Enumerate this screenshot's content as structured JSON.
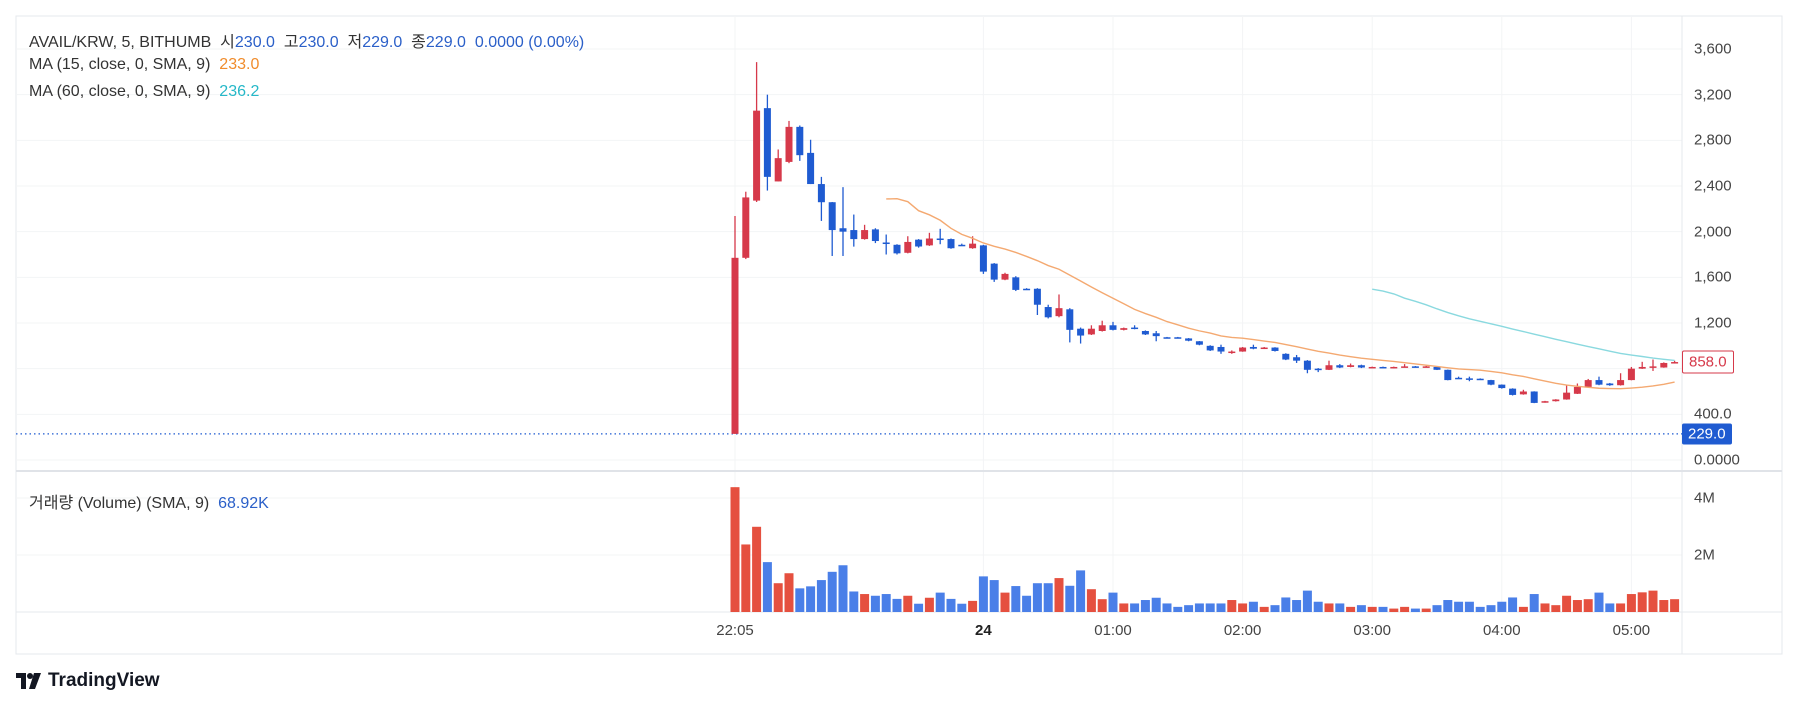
{
  "header": {
    "symbol": "AVAIL/KRW, 5, BITHUMB",
    "open_label": "시",
    "open": "230.0",
    "high_label": "고",
    "high": "230.0",
    "low_label": "저",
    "low": "229.0",
    "close_label": "종",
    "close": "229.0",
    "change": "0.0000 (0.00%)"
  },
  "indicators": [
    {
      "label": "MA (15, close, 0, SMA, 9)",
      "value": "233.0",
      "color": "#f08c2c"
    },
    {
      "label": "MA (60, close, 0, SMA, 9)",
      "value": "236.2",
      "color": "#26b8c8"
    }
  ],
  "volume_legend": {
    "label": "거래량 (Volume) (SMA, 9)",
    "value": "68.92K"
  },
  "price_tags": {
    "last": "858.0",
    "crosshair": "229.0"
  },
  "brand": "TradingView",
  "colors": {
    "up": "#d6394a",
    "down": "#1f5bd1",
    "vol_up": "#e5503f",
    "vol_down": "#4a7fe8",
    "ma15": "#f4a971",
    "ma60": "#8ad9df"
  },
  "chart_data": {
    "type": "candlestick",
    "interval": "5",
    "price_axis": {
      "ticks": [
        "3,600",
        "3,200",
        "2,800",
        "2,400",
        "2,000",
        "1,600",
        "1,200",
        "400.0",
        "0.0000"
      ],
      "tick_values": [
        3600,
        3200,
        2800,
        2400,
        2000,
        1600,
        1200,
        400,
        0
      ],
      "range": [
        0,
        3600
      ]
    },
    "volume_axis": {
      "ticks": [
        "4M",
        "2M"
      ],
      "tick_values": [
        4000000,
        2000000
      ]
    },
    "time_axis": {
      "ticks": [
        {
          "label": "22:05",
          "index": 0,
          "bold": false
        },
        {
          "label": "24",
          "index": 23,
          "bold": true
        },
        {
          "label": "01:00",
          "index": 35,
          "bold": false
        },
        {
          "label": "02:00",
          "index": 47,
          "bold": false
        },
        {
          "label": "03:00",
          "index": 59,
          "bold": false
        },
        {
          "label": "04:00",
          "index": 71,
          "bold": false
        },
        {
          "label": "05:00",
          "index": 83,
          "bold": false
        }
      ]
    },
    "ma_periods": [
      15,
      60
    ],
    "crosshair_price": 229,
    "candles_ohlcv": [
      [
        229,
        2137,
        229,
        1771,
        4380000
      ],
      [
        1771,
        2350,
        1760,
        2300,
        2370000
      ],
      [
        2272,
        3485,
        2260,
        3060,
        2990000
      ],
      [
        3082,
        3200,
        2360,
        2480,
        1750000
      ],
      [
        2440,
        2720,
        2440,
        2644,
        1010000
      ],
      [
        2611,
        2970,
        2600,
        2918,
        1360000
      ],
      [
        2918,
        2930,
        2620,
        2670,
        830000
      ],
      [
        2690,
        2805,
        2417,
        2417,
        900000
      ],
      [
        2417,
        2480,
        2094,
        2258,
        1120000
      ],
      [
        2258,
        2260,
        1787,
        2014,
        1410000
      ],
      [
        2030,
        2390,
        1787,
        2000,
        1640000
      ],
      [
        2014,
        2150,
        1869,
        1935,
        720000
      ],
      [
        1935,
        2060,
        1930,
        2014,
        630000
      ],
      [
        2020,
        2030,
        1900,
        1918,
        570000
      ],
      [
        1905,
        1975,
        1800,
        1895,
        630000
      ],
      [
        1885,
        1890,
        1800,
        1810,
        460000
      ],
      [
        1815,
        1960,
        1810,
        1910,
        570000
      ],
      [
        1930,
        1935,
        1860,
        1870,
        290000
      ],
      [
        1880,
        1990,
        1875,
        1940,
        500000
      ],
      [
        1940,
        2025,
        1890,
        1930,
        680000
      ],
      [
        1935,
        1940,
        1850,
        1855,
        460000
      ],
      [
        1885,
        1895,
        1875,
        1880,
        290000
      ],
      [
        1855,
        1960,
        1850,
        1895,
        390000
      ],
      [
        1880,
        1885,
        1630,
        1650,
        1250000
      ],
      [
        1720,
        1725,
        1560,
        1580,
        1120000
      ],
      [
        1580,
        1640,
        1575,
        1630,
        680000
      ],
      [
        1600,
        1610,
        1480,
        1490,
        910000
      ],
      [
        1500,
        1505,
        1490,
        1495,
        570000
      ],
      [
        1500,
        1505,
        1270,
        1360,
        1010000
      ],
      [
        1340,
        1360,
        1240,
        1250,
        1010000
      ],
      [
        1260,
        1450,
        1250,
        1330,
        1190000
      ],
      [
        1320,
        1330,
        1030,
        1140,
        920000
      ],
      [
        1150,
        1160,
        1020,
        1090,
        1460000
      ],
      [
        1100,
        1180,
        1095,
        1150,
        800000
      ],
      [
        1130,
        1220,
        1125,
        1180,
        450000
      ],
      [
        1180,
        1210,
        1135,
        1140,
        680000
      ],
      [
        1140,
        1160,
        1135,
        1155,
        300000
      ],
      [
        1160,
        1180,
        1145,
        1150,
        300000
      ],
      [
        1130,
        1135,
        1095,
        1100,
        420000
      ],
      [
        1110,
        1130,
        1040,
        1085,
        500000
      ],
      [
        1075,
        1078,
        1068,
        1070,
        300000
      ],
      [
        1075,
        1078,
        1068,
        1070,
        180000
      ],
      [
        1065,
        1068,
        1040,
        1045,
        240000
      ],
      [
        1040,
        1042,
        1005,
        1010,
        300000
      ],
      [
        1000,
        1005,
        955,
        960,
        300000
      ],
      [
        990,
        1010,
        930,
        950,
        300000
      ],
      [
        940,
        960,
        930,
        950,
        420000
      ],
      [
        950,
        990,
        948,
        985,
        300000
      ],
      [
        990,
        1010,
        970,
        975,
        360000
      ],
      [
        975,
        990,
        972,
        985,
        180000
      ],
      [
        985,
        988,
        950,
        955,
        240000
      ],
      [
        930,
        935,
        875,
        880,
        510000
      ],
      [
        900,
        920,
        850,
        870,
        420000
      ],
      [
        870,
        875,
        760,
        790,
        750000
      ],
      [
        800,
        805,
        770,
        790,
        360000
      ],
      [
        790,
        870,
        788,
        830,
        300000
      ],
      [
        830,
        840,
        805,
        810,
        300000
      ],
      [
        815,
        845,
        812,
        830,
        180000
      ],
      [
        830,
        835,
        805,
        810,
        240000
      ],
      [
        810,
        818,
        805,
        815,
        180000
      ],
      [
        815,
        818,
        808,
        812,
        180000
      ],
      [
        805,
        818,
        802,
        815,
        120000
      ],
      [
        812,
        840,
        810,
        820,
        180000
      ],
      [
        820,
        823,
        812,
        815,
        120000
      ],
      [
        815,
        825,
        812,
        820,
        120000
      ],
      [
        815,
        818,
        788,
        790,
        240000
      ],
      [
        790,
        792,
        698,
        700,
        420000
      ],
      [
        720,
        730,
        712,
        715,
        360000
      ],
      [
        715,
        730,
        690,
        712,
        360000
      ],
      [
        712,
        715,
        702,
        705,
        180000
      ],
      [
        700,
        702,
        655,
        660,
        240000
      ],
      [
        660,
        662,
        625,
        630,
        360000
      ],
      [
        625,
        628,
        565,
        570,
        510000
      ],
      [
        575,
        615,
        572,
        600,
        180000
      ],
      [
        600,
        602,
        498,
        500,
        630000
      ],
      [
        505,
        518,
        502,
        515,
        300000
      ],
      [
        515,
        533,
        512,
        530,
        240000
      ],
      [
        530,
        660,
        528,
        590,
        570000
      ],
      [
        580,
        670,
        578,
        640,
        420000
      ],
      [
        640,
        710,
        638,
        700,
        450000
      ],
      [
        700,
        730,
        655,
        660,
        680000
      ],
      [
        670,
        675,
        650,
        655,
        300000
      ],
      [
        655,
        760,
        652,
        700,
        300000
      ],
      [
        700,
        815,
        698,
        800,
        630000
      ],
      [
        800,
        860,
        798,
        815,
        690000
      ],
      [
        815,
        880,
        780,
        820,
        750000
      ],
      [
        810,
        855,
        808,
        850,
        420000
      ],
      [
        850,
        870,
        845,
        858,
        450000
      ]
    ]
  }
}
